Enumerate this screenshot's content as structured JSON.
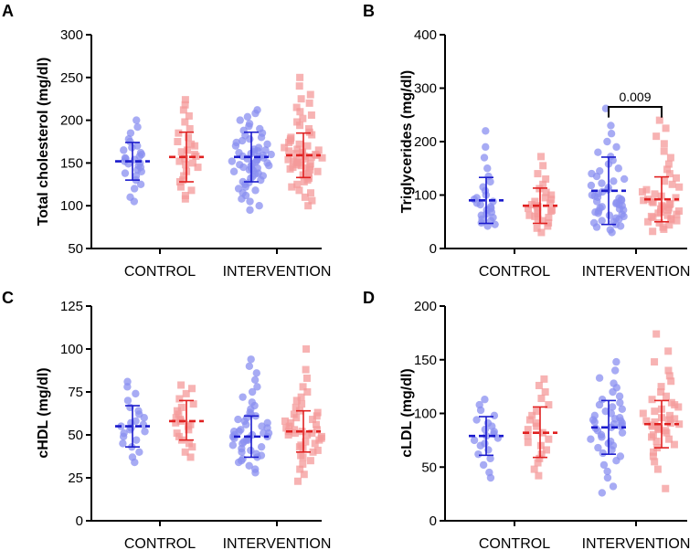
{
  "figure": {
    "colors": {
      "blue_point": "#8a8ff0",
      "blue_bar": "#1a1acc",
      "red_point": "#f49a9a",
      "red_bar": "#e02020",
      "axis": "#000000"
    },
    "marker_shapes": {
      "blue": "circle",
      "red": "square"
    }
  },
  "chart_data": [
    {
      "type": "scatter",
      "panel": "A",
      "ylabel": "Total cholesterol  (mg/dl)",
      "ylim": [
        50,
        300
      ],
      "yticks": [
        50,
        100,
        150,
        200,
        250,
        300
      ],
      "categories": [
        "CONTROL",
        "INTERVENTION"
      ],
      "series": [
        {
          "name": "blue",
          "group": "CONTROL",
          "mean": 152,
          "sd_low": 130,
          "sd_high": 174,
          "points": [
            105,
            110,
            120,
            125,
            130,
            135,
            138,
            140,
            142,
            145,
            147,
            149,
            150,
            152,
            154,
            155,
            156,
            158,
            160,
            162,
            165,
            168,
            170,
            175,
            178,
            185,
            192,
            200
          ]
        },
        {
          "name": "red",
          "group": "CONTROL",
          "mean": 157,
          "sd_low": 128,
          "sd_high": 186,
          "points": [
            108,
            112,
            118,
            122,
            128,
            130,
            135,
            140,
            145,
            148,
            150,
            152,
            155,
            158,
            160,
            163,
            165,
            170,
            172,
            175,
            180,
            185,
            190,
            198,
            205,
            212,
            218,
            224
          ]
        },
        {
          "name": "blue",
          "group": "INTERVENTION",
          "mean": 157,
          "sd_low": 128,
          "sd_high": 186,
          "points": [
            95,
            100,
            105,
            108,
            112,
            115,
            118,
            120,
            122,
            125,
            127,
            128,
            130,
            132,
            134,
            135,
            137,
            138,
            140,
            141,
            142,
            143,
            144,
            145,
            146,
            147,
            148,
            149,
            150,
            151,
            152,
            153,
            154,
            155,
            156,
            157,
            158,
            159,
            160,
            161,
            162,
            163,
            164,
            165,
            166,
            168,
            170,
            172,
            174,
            176,
            178,
            180,
            182,
            185,
            188,
            190,
            193,
            196,
            200,
            204,
            208,
            212
          ]
        },
        {
          "name": "red",
          "group": "INTERVENTION",
          "mean": 159,
          "sd_low": 133,
          "sd_high": 185,
          "points": [
            100,
            106,
            110,
            115,
            118,
            122,
            125,
            128,
            130,
            132,
            134,
            136,
            138,
            140,
            142,
            143,
            144,
            145,
            146,
            147,
            148,
            149,
            150,
            151,
            152,
            153,
            154,
            155,
            156,
            157,
            158,
            159,
            160,
            161,
            162,
            163,
            164,
            165,
            166,
            168,
            170,
            172,
            174,
            176,
            178,
            180,
            183,
            186,
            190,
            194,
            198,
            202,
            206,
            210,
            215,
            220,
            225,
            230,
            240,
            250
          ]
        }
      ]
    },
    {
      "type": "scatter",
      "panel": "B",
      "ylabel": "Triglycerides  (mg/dl)",
      "ylim": [
        0,
        400
      ],
      "yticks": [
        0,
        100,
        200,
        300,
        400
      ],
      "categories": [
        "CONTROL",
        "INTERVENTION"
      ],
      "annotation": {
        "text": "0.009",
        "group": "INTERVENTION",
        "y": 245,
        "bracket_top": 265
      },
      "series": [
        {
          "name": "blue",
          "group": "CONTROL",
          "mean": 90,
          "sd_low": 47,
          "sd_high": 133,
          "points": [
            42,
            45,
            48,
            52,
            55,
            58,
            62,
            65,
            68,
            72,
            75,
            78,
            82,
            85,
            88,
            92,
            95,
            100,
            108,
            115,
            125,
            135,
            150,
            170,
            190,
            220
          ]
        },
        {
          "name": "red",
          "group": "CONTROL",
          "mean": 80,
          "sd_low": 47,
          "sd_high": 113,
          "points": [
            30,
            38,
            42,
            48,
            52,
            55,
            58,
            60,
            62,
            65,
            68,
            70,
            72,
            75,
            78,
            80,
            82,
            85,
            88,
            92,
            95,
            100,
            105,
            112,
            120,
            130,
            140,
            155,
            172
          ]
        },
        {
          "name": "blue",
          "group": "INTERVENTION",
          "mean": 108,
          "sd_low": 45,
          "sd_high": 171,
          "points": [
            30,
            35,
            40,
            42,
            45,
            48,
            50,
            52,
            55,
            57,
            60,
            62,
            64,
            66,
            68,
            70,
            72,
            74,
            76,
            78,
            80,
            82,
            84,
            86,
            88,
            90,
            92,
            94,
            96,
            98,
            100,
            103,
            106,
            110,
            114,
            118,
            122,
            126,
            130,
            135,
            140,
            145,
            150,
            158,
            165,
            172,
            180,
            190,
            200,
            215,
            230,
            262
          ]
        },
        {
          "name": "red",
          "group": "INTERVENTION",
          "mean": 92,
          "sd_low": 50,
          "sd_high": 134,
          "points": [
            32,
            36,
            40,
            44,
            48,
            50,
            52,
            54,
            56,
            58,
            60,
            62,
            64,
            66,
            68,
            70,
            72,
            74,
            76,
            78,
            80,
            82,
            84,
            86,
            88,
            90,
            92,
            95,
            98,
            102,
            106,
            110,
            115,
            120,
            126,
            132,
            140,
            148,
            158,
            170,
            182,
            196,
            210,
            225,
            240
          ]
        }
      ]
    },
    {
      "type": "scatter",
      "panel": "C",
      "ylabel": "cHDL  (mg/dl)",
      "ylim": [
        0,
        125
      ],
      "yticks": [
        0,
        25,
        50,
        75,
        100,
        125
      ],
      "categories": [
        "CONTROL",
        "INTERVENTION"
      ],
      "series": [
        {
          "name": "blue",
          "group": "CONTROL",
          "mean": 55,
          "sd_low": 43,
          "sd_high": 67,
          "points": [
            34,
            37,
            40,
            43,
            45,
            47,
            49,
            51,
            52,
            53,
            54,
            55,
            56,
            57,
            58,
            60,
            62,
            64,
            66,
            70,
            74,
            78,
            81
          ]
        },
        {
          "name": "red",
          "group": "CONTROL",
          "mean": 58,
          "sd_low": 47,
          "sd_high": 70,
          "points": [
            37,
            40,
            43,
            45,
            47,
            49,
            51,
            53,
            55,
            56,
            57,
            58,
            59,
            60,
            62,
            64,
            66,
            68,
            71,
            74,
            77,
            79
          ]
        },
        {
          "name": "blue",
          "group": "INTERVENTION",
          "mean": 49,
          "sd_low": 37,
          "sd_high": 61,
          "points": [
            28,
            30,
            32,
            34,
            35,
            36,
            37,
            38,
            39,
            40,
            41,
            42,
            43,
            44,
            45,
            46,
            47,
            47,
            48,
            48,
            49,
            49,
            50,
            50,
            51,
            51,
            52,
            52,
            53,
            54,
            55,
            56,
            57,
            58,
            59,
            60,
            61,
            62,
            63,
            65,
            67,
            69,
            72,
            75,
            78,
            82,
            86,
            90,
            94
          ]
        },
        {
          "name": "red",
          "group": "INTERVENTION",
          "mean": 52,
          "sd_low": 40,
          "sd_high": 64,
          "points": [
            23,
            27,
            30,
            33,
            35,
            37,
            38,
            40,
            41,
            42,
            43,
            44,
            45,
            46,
            47,
            48,
            49,
            50,
            50,
            51,
            51,
            52,
            52,
            53,
            53,
            54,
            55,
            56,
            57,
            58,
            59,
            60,
            61,
            62,
            63,
            64,
            66,
            68,
            70,
            72,
            75,
            78,
            83,
            88,
            100
          ]
        }
      ]
    },
    {
      "type": "scatter",
      "panel": "D",
      "ylabel": "cLDL  (mg/dl)",
      "ylim": [
        0,
        200
      ],
      "yticks": [
        0,
        50,
        100,
        150,
        200
      ],
      "categories": [
        "CONTROL",
        "INTERVENTION"
      ],
      "series": [
        {
          "name": "blue",
          "group": "CONTROL",
          "mean": 79,
          "sd_low": 61,
          "sd_high": 97,
          "points": [
            40,
            45,
            52,
            58,
            62,
            66,
            70,
            72,
            75,
            77,
            79,
            81,
            83,
            85,
            88,
            91,
            94,
            98,
            103,
            108,
            113
          ]
        },
        {
          "name": "red",
          "group": "CONTROL",
          "mean": 82,
          "sd_low": 59,
          "sd_high": 106,
          "points": [
            42,
            48,
            54,
            58,
            62,
            66,
            70,
            73,
            76,
            79,
            82,
            85,
            88,
            91,
            94,
            98,
            102,
            108,
            114,
            120,
            126,
            132
          ]
        },
        {
          "name": "blue",
          "group": "INTERVENTION",
          "mean": 87,
          "sd_low": 62,
          "sd_high": 112,
          "points": [
            26,
            32,
            40,
            46,
            52,
            56,
            60,
            63,
            66,
            68,
            70,
            72,
            74,
            76,
            78,
            80,
            82,
            84,
            86,
            87,
            88,
            89,
            90,
            91,
            92,
            93,
            94,
            95,
            96,
            98,
            100,
            102,
            104,
            106,
            108,
            110,
            113,
            116,
            120,
            124,
            128,
            133,
            140,
            148
          ]
        },
        {
          "name": "red",
          "group": "INTERVENTION",
          "mean": 90,
          "sd_low": 68,
          "sd_high": 112,
          "points": [
            30,
            48,
            55,
            60,
            64,
            68,
            71,
            74,
            76,
            78,
            80,
            82,
            84,
            85,
            86,
            87,
            88,
            89,
            90,
            91,
            92,
            93,
            94,
            95,
            96,
            98,
            100,
            102,
            104,
            106,
            108,
            110,
            113,
            116,
            120,
            125,
            130,
            135,
            140,
            148,
            158,
            174
          ]
        }
      ]
    }
  ]
}
